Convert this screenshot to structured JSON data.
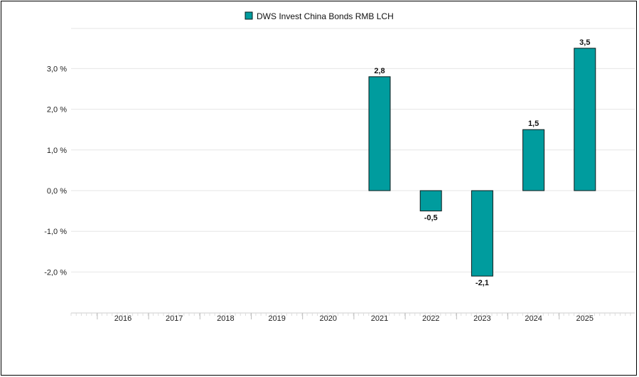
{
  "chart_data": {
    "type": "bar",
    "categories": [
      "2016",
      "2017",
      "2018",
      "2019",
      "2020",
      "2021",
      "2022",
      "2023",
      "2024",
      "2025"
    ],
    "series": [
      {
        "name": "DWS Invest China Bonds RMB LCH",
        "values": [
          null,
          null,
          null,
          null,
          null,
          2.8,
          -0.5,
          -2.1,
          1.5,
          3.5
        ],
        "value_labels": [
          "",
          "",
          "",
          "",
          "",
          "2,8",
          "-0,5",
          "-2,1",
          "1,5",
          "3,5"
        ]
      }
    ],
    "yticks": [
      3,
      2,
      1,
      0,
      -1,
      -2
    ],
    "ytick_labels": [
      "3,0 %",
      "2,0 %",
      "1,0 %",
      "0,0 %",
      "-1,0 %",
      "-2,0 %"
    ],
    "ylim": [
      -3.0,
      3.8
    ],
    "grid": true,
    "legend_position": "top-center",
    "colors": {
      "bar": "#009c9e",
      "bar_stroke": "#0a1a1a",
      "grid": "#e6e6e6",
      "axis": "#cccccc"
    }
  }
}
